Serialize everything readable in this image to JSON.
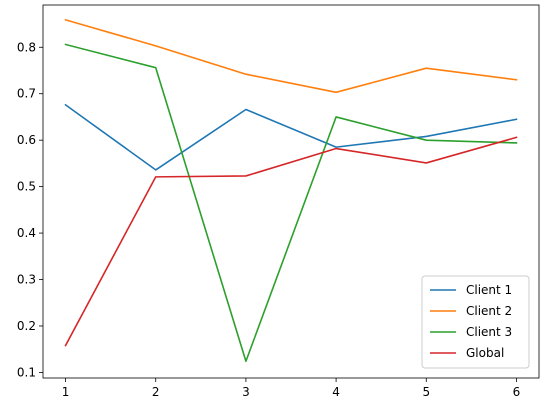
{
  "chart_data": {
    "type": "line",
    "title": "",
    "xlabel": "",
    "ylabel": "",
    "x": [
      1,
      2,
      3,
      4,
      5,
      6
    ],
    "xlim": [
      0.75,
      6.25
    ],
    "ylim": [
      0.088,
      0.891
    ],
    "xticks": [
      1,
      2,
      3,
      4,
      5,
      6
    ],
    "yticks": [
      0.1,
      0.2,
      0.3,
      0.4,
      0.5,
      0.6,
      0.7,
      0.8
    ],
    "grid": false,
    "legend_position": "lower-right",
    "series": [
      {
        "name": "Client 1",
        "color": "#1f77b4",
        "values": [
          0.676,
          0.536,
          0.666,
          0.585,
          0.608,
          0.645
        ]
      },
      {
        "name": "Client 2",
        "color": "#ff7f0e",
        "values": [
          0.859,
          0.803,
          0.742,
          0.703,
          0.755,
          0.73
        ]
      },
      {
        "name": "Client 3",
        "color": "#2ca02c",
        "values": [
          0.806,
          0.756,
          0.124,
          0.65,
          0.6,
          0.594
        ]
      },
      {
        "name": "Global",
        "color": "#d62728",
        "values": [
          0.158,
          0.521,
          0.523,
          0.582,
          0.551,
          0.606
        ]
      }
    ]
  }
}
